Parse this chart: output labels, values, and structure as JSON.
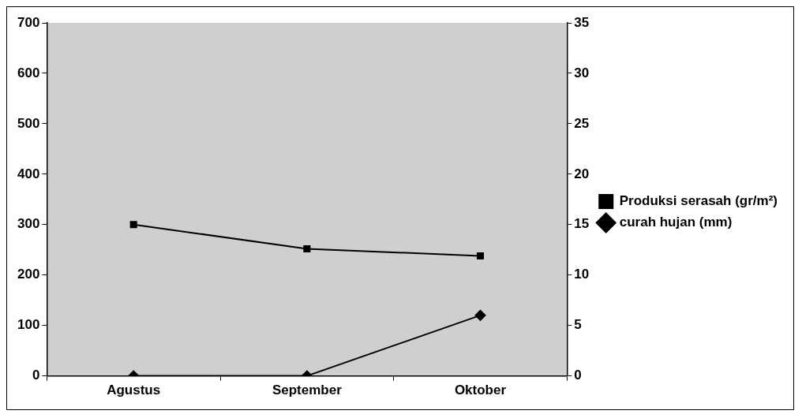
{
  "chart_data": {
    "type": "line",
    "categories": [
      "Agustus",
      "September",
      "Oktober"
    ],
    "series": [
      {
        "name": "Produksi serasah (gr/m²)",
        "color": "#000000",
        "values": [
          300,
          252,
          238
        ],
        "marker": "square"
      },
      {
        "name": "curah hujan (mm)",
        "color": "#000000",
        "values": [
          0,
          0,
          6
        ],
        "axis": "y2",
        "marker": "diamond"
      }
    ],
    "ylim": [
      0,
      700
    ],
    "yticks": [
      0,
      100,
      200,
      300,
      400,
      500,
      600,
      700
    ],
    "y2lim": [
      0,
      35
    ],
    "y2ticks": [
      0,
      5,
      10,
      15,
      20,
      25,
      30,
      35
    ],
    "grid": false,
    "legend": "right",
    "line_style": "solid"
  }
}
